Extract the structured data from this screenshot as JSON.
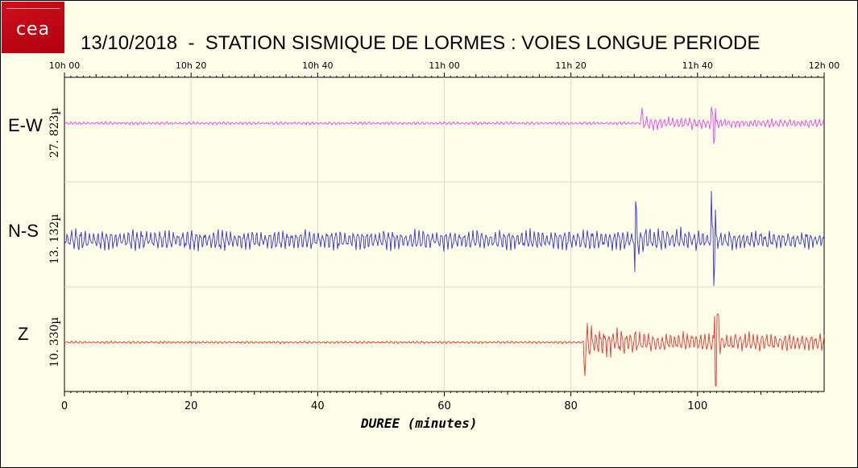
{
  "title": "13/10/2018  -  STATION SISMIQUE DE LORMES : VOIES LONGUE PERIODE",
  "logo": {
    "text": "cea"
  },
  "chart_data": {
    "type": "line",
    "title": "13/10/2018  -  STATION SISMIQUE DE LORMES : VOIES LONGUE PERIODE",
    "xlabel": "DUREE (minutes)",
    "xlim": [
      0,
      120
    ],
    "x_ticks": [
      0,
      20,
      40,
      60,
      80,
      100
    ],
    "x_tick_labels": [
      "0",
      "20",
      "40",
      "60",
      "80",
      "100"
    ],
    "top_axis_ticks": [
      "10h 00",
      "10h 20",
      "10h 40",
      "11h 00",
      "11h 20",
      "11h 40",
      "12h 00"
    ],
    "grid": true,
    "series": [
      {
        "name": "E-W",
        "scale_label": "27. 823µ",
        "color": "#ee44ee",
        "event_onset_min": 91,
        "peak_min": 102.5
      },
      {
        "name": "N-S",
        "scale_label": "13. 132µ",
        "color": "#3333dd",
        "event_onset_min": 90,
        "peak_min": 102.5
      },
      {
        "name": "Z",
        "scale_label": "10. 330µ",
        "color": "#ee3333",
        "event_onset_min": 82,
        "peak_min": 103
      }
    ]
  }
}
